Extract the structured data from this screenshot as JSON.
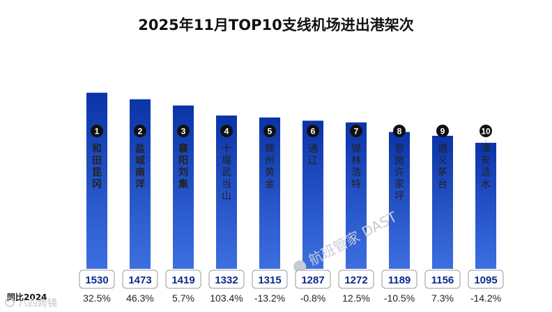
{
  "chart_data": {
    "type": "bar",
    "title": "2025年11月TOP10支线机场进出港架次",
    "categories": [
      "和田昆冈",
      "盐城南洋",
      "襄阳刘集",
      "十堰武当山",
      "赣州黄金",
      "通辽",
      "锡林浩特",
      "恩施许家坪",
      "遵义茅台",
      "淮安涟水"
    ],
    "ranks": [
      "1",
      "2",
      "3",
      "4",
      "5",
      "6",
      "7",
      "8",
      "9",
      "10"
    ],
    "values": [
      1530,
      1473,
      1419,
      1332,
      1315,
      1287,
      1272,
      1189,
      1156,
      1095
    ],
    "yoy_label": "同比2024",
    "yoy": [
      "32.5%",
      "46.3%",
      "5.7%",
      "103.4%",
      "-13.2%",
      "-0.8%",
      "12.5%",
      "-10.5%",
      "7.3%",
      "-14.2%"
    ],
    "ylim": [
      0,
      1900
    ],
    "grid": false,
    "bar_color": "#0a34a8",
    "value_color": "#0a2a8c"
  },
  "watermark": "航班管家 DAST",
  "brand": "八四跨镜"
}
